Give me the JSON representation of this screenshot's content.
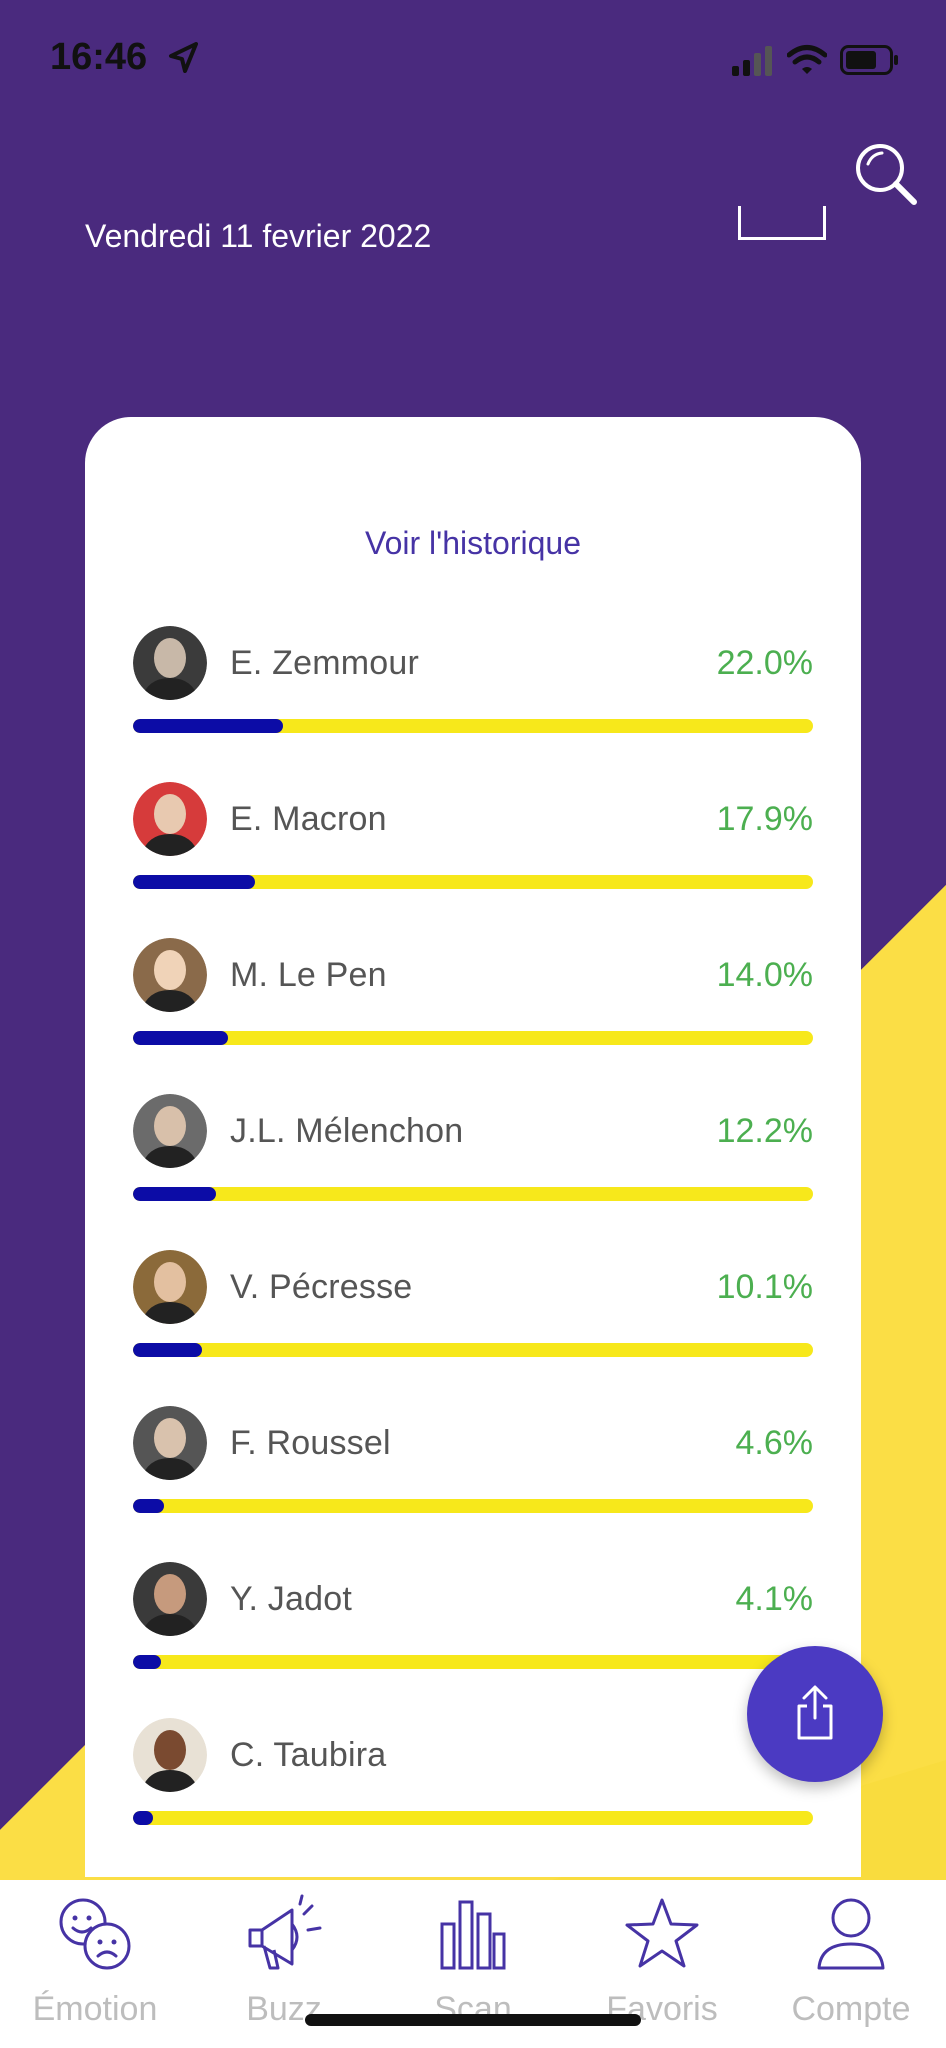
{
  "status": {
    "time": "16:46"
  },
  "header": {
    "date": "Vendredi 11 fevrier 2022",
    "search_icon": "search-icon"
  },
  "card": {
    "history_link": "Voir l'historique",
    "candidates": [
      {
        "name": "E. Zemmour",
        "pct": "22.0%",
        "value": 22.0
      },
      {
        "name": "E. Macron",
        "pct": "17.9%",
        "value": 17.9
      },
      {
        "name": "M. Le Pen",
        "pct": "14.0%",
        "value": 14.0
      },
      {
        "name": "J.L. Mélenchon",
        "pct": "12.2%",
        "value": 12.2
      },
      {
        "name": "V. Pécresse",
        "pct": "10.1%",
        "value": 10.1
      },
      {
        "name": "F. Roussel",
        "pct": "4.6%",
        "value": 4.6
      },
      {
        "name": "Y. Jadot",
        "pct": "4.1%",
        "value": 4.1
      },
      {
        "name": "C. Taubira",
        "pct": "3.",
        "value": 3.0
      }
    ]
  },
  "nav": {
    "items": [
      {
        "label": "Émotion",
        "icon": "emotion-faces-icon"
      },
      {
        "label": "Buzz",
        "icon": "megaphone-icon"
      },
      {
        "label": "Scan",
        "icon": "bar-chart-icon"
      },
      {
        "label": "Favoris",
        "icon": "star-icon"
      },
      {
        "label": "Compte",
        "icon": "user-icon"
      }
    ]
  },
  "colors": {
    "background": "#4a2a7e",
    "accent_yellow": "#f9dc3e",
    "bar_fill": "#0c0ca6",
    "bar_track": "#f7e81b",
    "percent": "#4caf50",
    "link": "#4633a5",
    "fab": "#4b3ac2"
  }
}
